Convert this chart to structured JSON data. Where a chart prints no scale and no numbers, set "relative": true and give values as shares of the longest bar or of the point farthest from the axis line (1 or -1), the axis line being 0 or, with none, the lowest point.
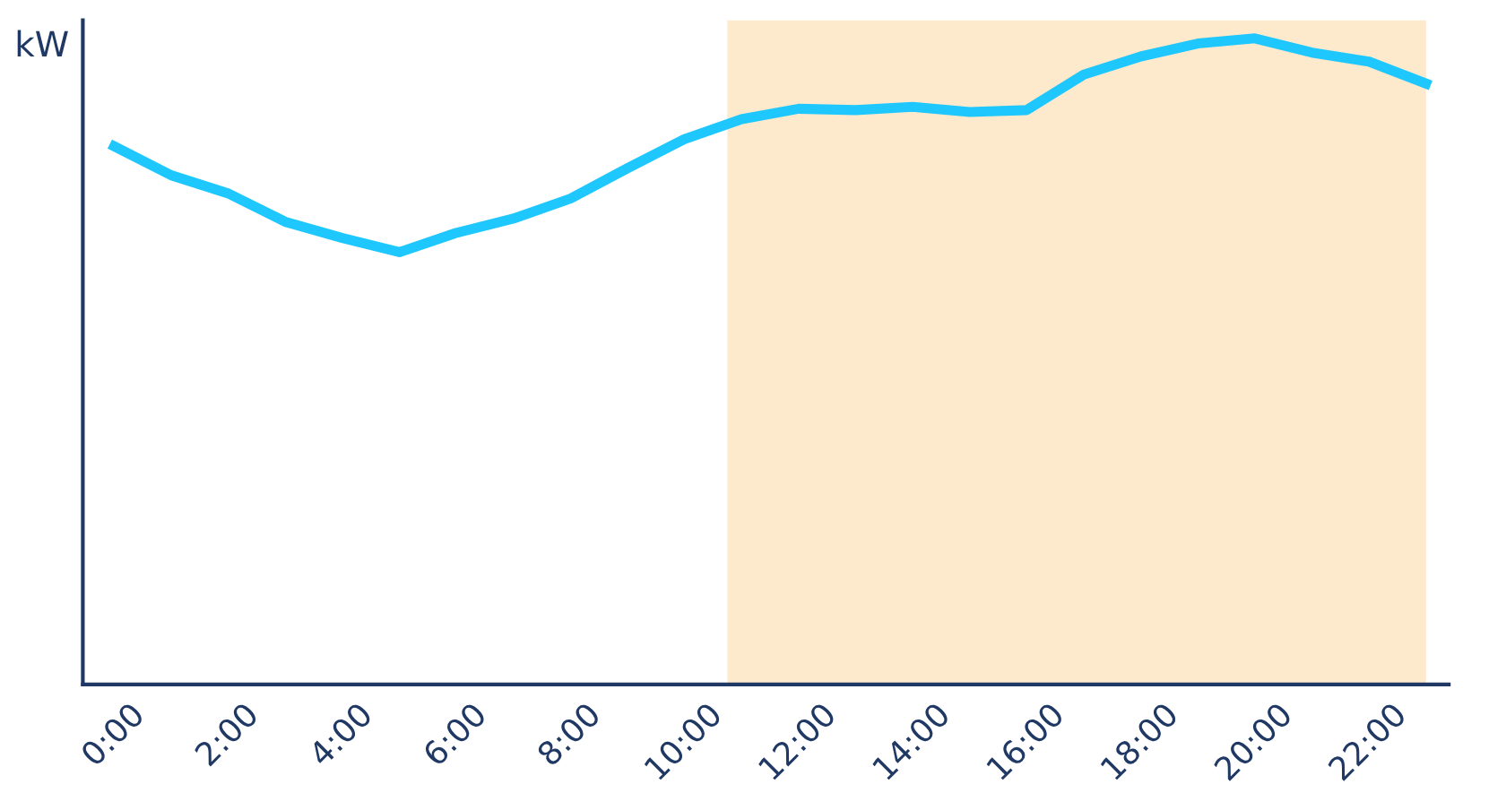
{
  "chart_data": {
    "type": "line",
    "ylabel": "kW",
    "relative": true,
    "x": [
      0,
      1,
      2,
      3,
      4,
      5,
      6,
      7,
      8,
      9,
      10,
      11,
      12,
      13,
      14,
      15,
      16,
      17,
      18,
      19,
      20,
      21,
      22,
      23
    ],
    "series": [
      {
        "color": "#1ec8ff",
        "values": [
          0.833,
          0.788,
          0.76,
          0.716,
          0.691,
          0.669,
          0.699,
          0.721,
          0.752,
          0.799,
          0.844,
          0.875,
          0.891,
          0.889,
          0.894,
          0.886,
          0.889,
          0.944,
          0.972,
          0.992,
          1,
          0.978,
          0.964,
          0.93
        ]
      }
    ],
    "xlim": [
      -0.55,
      23.4
    ],
    "xticks": [
      {
        "value": 0,
        "label": "0:00"
      },
      {
        "value": 2,
        "label": "2:00"
      },
      {
        "value": 4,
        "label": "4:00"
      },
      {
        "value": 6,
        "label": "6:00"
      },
      {
        "value": 8,
        "label": "8:00"
      },
      {
        "value": 10,
        "label": "10:00"
      },
      {
        "value": 12,
        "label": "12:00"
      },
      {
        "value": 14,
        "label": "14:00"
      },
      {
        "value": 16,
        "label": "16:00"
      },
      {
        "value": 18,
        "label": "18:00"
      },
      {
        "value": 20,
        "label": "20:00"
      },
      {
        "value": 22,
        "label": "22:00"
      }
    ],
    "bands": [
      {
        "axis": "x",
        "from": 10.75,
        "to": 23,
        "color": "#fde9cc"
      }
    ],
    "grid": false,
    "marker": "none",
    "line_style": "solid"
  }
}
